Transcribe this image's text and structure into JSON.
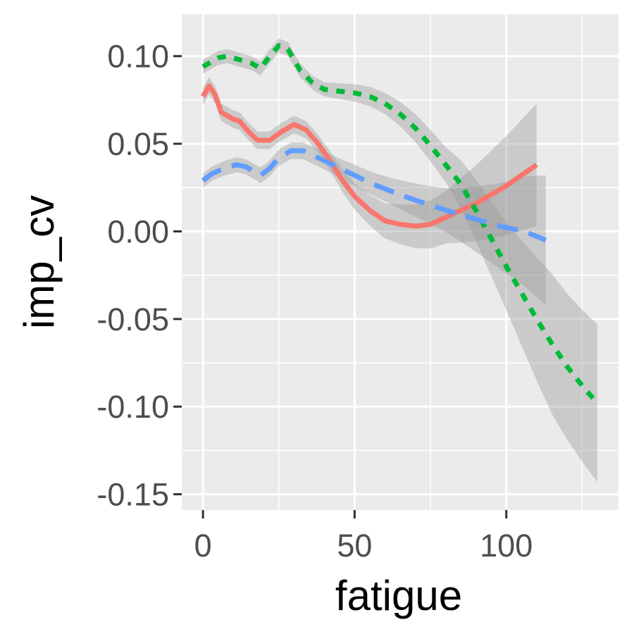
{
  "chart_data": {
    "type": "line",
    "title": "",
    "xlabel": "fatigue",
    "ylabel": "imp_cv",
    "xlim": [
      -7,
      137
    ],
    "ylim": [
      -0.159,
      0.124
    ],
    "x_ticks": [
      0,
      50,
      100
    ],
    "x_tick_labels": [
      "0",
      "50",
      "100"
    ],
    "y_ticks": [
      0.1,
      0.05,
      0.0,
      -0.05,
      -0.1,
      -0.15
    ],
    "y_tick_labels": [
      "0.10",
      "0.05",
      "0.00",
      "-0.05",
      "-0.10",
      "-0.15"
    ],
    "grid": true,
    "legend": "none",
    "colors": {
      "panel": "#ebebeb",
      "grid": "#ffffff",
      "ribbon": "#999999",
      "tick_text": "#4d4d4d",
      "axis_title": "#000000"
    },
    "series": [
      {
        "color": "#f8766d",
        "linetype": "solid",
        "points": [
          [
            0,
            0.077
          ],
          [
            2,
            0.083
          ],
          [
            4,
            0.078
          ],
          [
            6,
            0.068
          ],
          [
            8,
            0.066
          ],
          [
            10,
            0.064
          ],
          [
            12,
            0.063
          ],
          [
            15,
            0.057
          ],
          [
            18,
            0.052
          ],
          [
            22,
            0.052
          ],
          [
            26,
            0.057
          ],
          [
            30,
            0.061
          ],
          [
            34,
            0.058
          ],
          [
            38,
            0.05
          ],
          [
            42,
            0.04
          ],
          [
            46,
            0.029
          ],
          [
            50,
            0.02
          ],
          [
            55,
            0.012
          ],
          [
            60,
            0.006
          ],
          [
            65,
            0.004
          ],
          [
            70,
            0.003
          ],
          [
            75,
            0.004
          ],
          [
            80,
            0.008
          ],
          [
            85,
            0.012
          ],
          [
            90,
            0.016
          ],
          [
            95,
            0.021
          ],
          [
            100,
            0.026
          ],
          [
            105,
            0.032
          ],
          [
            110,
            0.038
          ]
        ],
        "ribbon_width": [
          [
            0,
            0.005
          ],
          [
            40,
            0.005
          ],
          [
            60,
            0.01
          ],
          [
            80,
            0.015
          ],
          [
            95,
            0.025
          ],
          [
            110,
            0.035
          ]
        ]
      },
      {
        "color": "#00ba38",
        "linetype": "dotted",
        "points": [
          [
            0,
            0.094
          ],
          [
            5,
            0.099
          ],
          [
            8,
            0.1
          ],
          [
            12,
            0.098
          ],
          [
            16,
            0.096
          ],
          [
            19,
            0.093
          ],
          [
            22,
            0.1
          ],
          [
            25,
            0.106
          ],
          [
            28,
            0.104
          ],
          [
            30,
            0.098
          ],
          [
            32,
            0.092
          ],
          [
            36,
            0.085
          ],
          [
            40,
            0.081
          ],
          [
            45,
            0.08
          ],
          [
            50,
            0.079
          ],
          [
            55,
            0.077
          ],
          [
            60,
            0.073
          ],
          [
            65,
            0.067
          ],
          [
            70,
            0.059
          ],
          [
            75,
            0.049
          ],
          [
            80,
            0.038
          ],
          [
            85,
            0.027
          ],
          [
            90,
            0.012
          ],
          [
            95,
            -0.004
          ],
          [
            100,
            -0.02
          ],
          [
            105,
            -0.035
          ],
          [
            110,
            -0.05
          ],
          [
            115,
            -0.064
          ],
          [
            120,
            -0.077
          ],
          [
            125,
            -0.088
          ],
          [
            130,
            -0.098
          ]
        ],
        "ribbon_width": [
          [
            0,
            0.004
          ],
          [
            40,
            0.004
          ],
          [
            60,
            0.006
          ],
          [
            80,
            0.01
          ],
          [
            100,
            0.025
          ],
          [
            115,
            0.04
          ],
          [
            130,
            0.045
          ]
        ]
      },
      {
        "color": "#619cff",
        "linetype": "dashed",
        "points": [
          [
            0,
            0.029
          ],
          [
            3,
            0.033
          ],
          [
            7,
            0.036
          ],
          [
            11,
            0.038
          ],
          [
            14,
            0.037
          ],
          [
            17,
            0.034
          ],
          [
            19,
            0.032
          ],
          [
            22,
            0.036
          ],
          [
            25,
            0.042
          ],
          [
            29,
            0.046
          ],
          [
            33,
            0.046
          ],
          [
            38,
            0.042
          ],
          [
            44,
            0.037
          ],
          [
            50,
            0.032
          ],
          [
            56,
            0.027
          ],
          [
            62,
            0.023
          ],
          [
            68,
            0.019
          ],
          [
            75,
            0.015
          ],
          [
            82,
            0.011
          ],
          [
            90,
            0.007
          ],
          [
            98,
            0.003
          ],
          [
            106,
            0.0
          ],
          [
            113,
            -0.005
          ]
        ],
        "ribbon_width": [
          [
            0,
            0.004
          ],
          [
            40,
            0.005
          ],
          [
            60,
            0.007
          ],
          [
            80,
            0.012
          ],
          [
            95,
            0.022
          ],
          [
            113,
            0.037
          ]
        ]
      }
    ]
  }
}
